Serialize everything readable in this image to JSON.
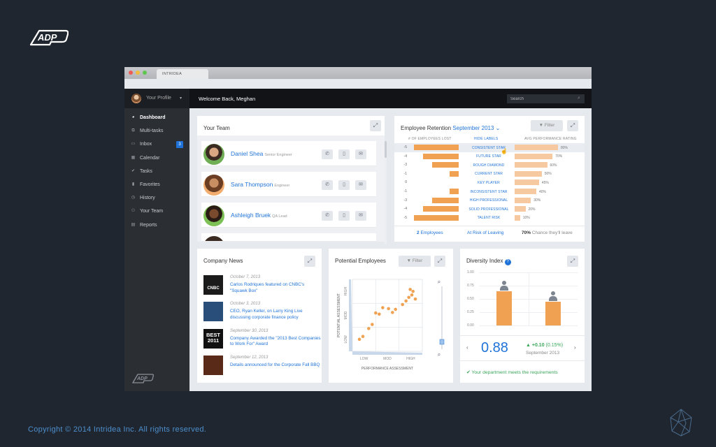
{
  "brand": {
    "logo_text": "ADP",
    "copyright": "Copyright © 2014 Intridea Inc. All rights reserved."
  },
  "window": {
    "tab_title": "INTRIDEA"
  },
  "topbar": {
    "profile_label": "Your Profile",
    "welcome": "Welcome Back, Meghan",
    "search_placeholder": "Search"
  },
  "sidebar": {
    "items": [
      {
        "label": "Dashboard",
        "icon": "dashboard-icon",
        "glyph": "◕",
        "active": true
      },
      {
        "label": "Multi-tasks",
        "icon": "tasks-stack-icon",
        "glyph": "⧉",
        "active": false
      },
      {
        "label": "Inbox",
        "icon": "inbox-icon",
        "glyph": "▭",
        "active": false,
        "badge": "3"
      },
      {
        "label": "Calendar",
        "icon": "calendar-icon",
        "glyph": "▦",
        "active": false
      },
      {
        "label": "Tasks",
        "icon": "check-icon",
        "glyph": "✔",
        "active": false
      },
      {
        "label": "Favorites",
        "icon": "bookmark-icon",
        "glyph": "▮",
        "active": false
      },
      {
        "label": "History",
        "icon": "history-icon",
        "glyph": "◷",
        "active": false
      },
      {
        "label": "Your Team",
        "icon": "team-icon",
        "glyph": "⚇",
        "active": false
      },
      {
        "label": "Reports",
        "icon": "report-icon",
        "glyph": "▤",
        "active": false
      }
    ]
  },
  "team": {
    "title": "Your Team",
    "members": [
      {
        "name": "Daniel Shea",
        "role": "Senior Engineer"
      },
      {
        "name": "Sara Thompson",
        "role": "Engineer"
      },
      {
        "name": "Ashleigh Bruek",
        "role": "QA Lead"
      }
    ]
  },
  "retention": {
    "title": "Employee Retention",
    "period": "September 2013 ⌄",
    "filter_label": "▼ Filter",
    "col_lost": "# OF EMPLOYEES LOST",
    "col_labels": "HIDE LABELS",
    "col_rating": "AVG PERFORMANCE RATING",
    "rows": [
      {
        "label": "CONSISTENT STAR",
        "lost": -5,
        "lost_label": "-5",
        "rating": 80,
        "rating_label": "80%"
      },
      {
        "label": "FUTURE STAR",
        "lost": -4,
        "lost_label": "-4",
        "rating": 70,
        "rating_label": "70%"
      },
      {
        "label": "ROUGH DIAMOND",
        "lost": -3,
        "lost_label": "-3",
        "rating": 60,
        "rating_label": "60%"
      },
      {
        "label": "CURRENT STAR",
        "lost": -1,
        "lost_label": "-1",
        "rating": 50,
        "rating_label": "50%"
      },
      {
        "label": "KEY PLAYER",
        "lost": 0,
        "lost_label": "0",
        "rating": 45,
        "rating_label": "45%"
      },
      {
        "label": "INCONSISTENT STAR",
        "lost": -1,
        "lost_label": "-1",
        "rating": 40,
        "rating_label": "40%"
      },
      {
        "label": "HIGH PROFESSIONAL",
        "lost": -3,
        "lost_label": "-3",
        "rating": 30,
        "rating_label": "30%"
      },
      {
        "label": "SOLID PROFESSIONAL",
        "lost": -4,
        "lost_label": "-4",
        "rating": 20,
        "rating_label": "20%"
      },
      {
        "label": "TALENT RISK",
        "lost": -5,
        "lost_label": "-5",
        "rating": 10,
        "rating_label": "10%"
      }
    ],
    "footer": {
      "count": "2",
      "count_suffix": "Employees",
      "risk": "At Risk of Leaving",
      "pct": "70%",
      "pct_suffix": "Chance they'll leave"
    }
  },
  "news": {
    "title": "Company News",
    "items": [
      {
        "date": "October 7, 2013",
        "text": "Carlos Rodriques featured on CNBC's \"Squawk Box\"",
        "thumb": "CNBC"
      },
      {
        "date": "October 3, 2013",
        "text": "CEO, Ryan Keller, on Larry King Live discussing corporate finance policy",
        "thumb": ""
      },
      {
        "date": "September 30, 2013",
        "text": "Company Awarded the \"2013 Best Companies to Work For\" Award",
        "thumb": "BEST\n2011"
      },
      {
        "date": "September 12, 2013",
        "text": "Details announced for the Corporate Fall BBQ",
        "thumb": ""
      }
    ]
  },
  "potential": {
    "title": "Potential Employees",
    "filter_label": "▼ Filter",
    "chart_data": {
      "type": "scatter",
      "xlabel": "PERFORMANCE ASSESSMENT",
      "ylabel": "POTENTIAL ASSESSMENT",
      "x_ticks": [
        "LOW",
        "MOD",
        "HIGH"
      ],
      "y_ticks": [
        "LOW",
        "MOD",
        "HIGH"
      ],
      "xlim": [
        0,
        3
      ],
      "ylim": [
        0,
        3
      ],
      "points": [
        [
          0.3,
          0.5
        ],
        [
          0.45,
          0.62
        ],
        [
          0.7,
          0.95
        ],
        [
          0.85,
          1.12
        ],
        [
          1.0,
          1.6
        ],
        [
          1.15,
          1.55
        ],
        [
          1.3,
          1.82
        ],
        [
          1.55,
          1.78
        ],
        [
          1.72,
          1.62
        ],
        [
          1.85,
          1.75
        ],
        [
          2.15,
          1.95
        ],
        [
          2.3,
          2.1
        ],
        [
          2.42,
          2.25
        ],
        [
          2.55,
          2.35
        ],
        [
          2.6,
          2.5
        ],
        [
          2.48,
          2.58
        ],
        [
          2.7,
          2.18
        ]
      ]
    }
  },
  "diversity": {
    "title": "Diversity Index",
    "value": "0.88",
    "delta": "+0.10",
    "delta_pct": "(0.15%)",
    "period": "September 2013",
    "status": "✔ Your department meets the requirements",
    "chart_data": {
      "type": "bar",
      "categories": [
        "",
        ""
      ],
      "values": [
        0.65,
        0.45
      ],
      "y_ticks": [
        "1.00",
        "0.75",
        "0.50",
        "0.25",
        "0.00"
      ],
      "ylim": [
        0,
        1
      ]
    }
  },
  "colors": {
    "accent": "#1f73d8",
    "orange": "#f0a252",
    "sidebar": "#2b2e33",
    "success": "#3aa65a"
  }
}
